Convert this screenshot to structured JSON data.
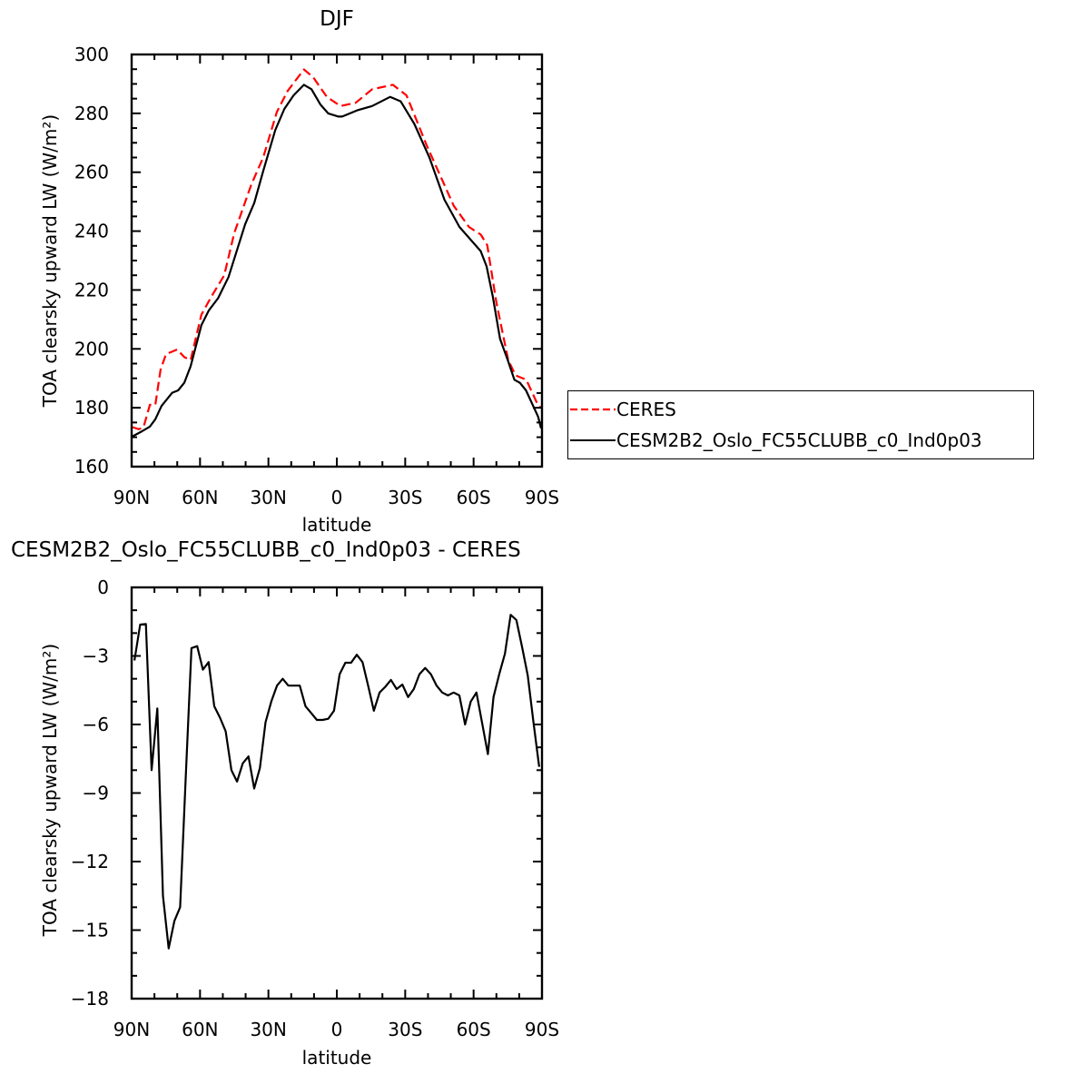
{
  "colors": {
    "ceres": "#ff0000",
    "model": "#000000"
  },
  "chart_data": [
    {
      "type": "line",
      "title": "DJF",
      "xlabel": "latitude",
      "ylabel": "TOA clearsky upward LW (W/m²)",
      "xlim": [
        90,
        -90
      ],
      "ylim": [
        160,
        300
      ],
      "x_ticks": [
        90,
        60,
        30,
        0,
        -30,
        -60,
        -90
      ],
      "x_tick_labels": [
        "90N",
        "60N",
        "30N",
        "0",
        "30S",
        "60S",
        "90S"
      ],
      "y_ticks": [
        160,
        180,
        200,
        220,
        240,
        260,
        280,
        300
      ],
      "y_tick_labels": [
        "160",
        "180",
        "200",
        "220",
        "240",
        "260",
        "280",
        "300"
      ],
      "legend_position": "right",
      "series": [
        {
          "name": "CERES",
          "style": "dashed",
          "color": "#ff0000",
          "lat": [
            89.6,
            86.8,
            84.8,
            82,
            79.6,
            77.3,
            74.9,
            70,
            66.9,
            64.1,
            59.4,
            55,
            49.4,
            45,
            37.5,
            32.3,
            26.3,
            21.5,
            14.4,
            10.4,
            4.4,
            -1.6,
            -8.3,
            -15.5,
            -24.6,
            -30.6,
            -39.4,
            -51.3,
            -58,
            -63.2,
            -66,
            -70,
            -75.2,
            -78.4,
            -83.1,
            -88.3,
            -89.6
          ],
          "values": [
            173.4,
            172.7,
            173.4,
            181,
            181,
            193,
            198.2,
            199.8,
            197.2,
            196.2,
            211.6,
            217.8,
            225,
            239.3,
            255.8,
            265,
            280.5,
            287.7,
            294.9,
            292.3,
            285.6,
            282.5,
            283.6,
            288.2,
            289.7,
            286.1,
            269.2,
            248.6,
            241.4,
            238.8,
            235.2,
            215.7,
            196.2,
            191,
            189.5,
            180.8,
            180
          ]
        },
        {
          "name": "CESM2B2_Oslo_FC55CLUBB_c0_Ind0p03",
          "style": "solid",
          "color": "#000000",
          "lat": [
            89.6,
            85.5,
            82,
            79.6,
            76.9,
            72.2,
            69.6,
            66.9,
            64.1,
            59.4,
            56.1,
            52.1,
            47.5,
            40.2,
            36.2,
            32.3,
            27,
            23,
            19,
            14.4,
            11.1,
            7.2,
            3.8,
            -0.7,
            -2.3,
            -8.9,
            -15.5,
            -23.4,
            -28,
            -34,
            -40.6,
            -47.2,
            -53.8,
            -63.1,
            -65.7,
            -68.4,
            -71.6,
            -75,
            -77.9,
            -80.3,
            -83,
            -88.3,
            -89.6
          ],
          "values": [
            170.3,
            172,
            173.6,
            176.1,
            180.6,
            185.1,
            185.9,
            188.5,
            194.1,
            208,
            213.1,
            217.2,
            224.4,
            242.4,
            249.6,
            260.4,
            274.3,
            281.5,
            286.1,
            289.7,
            288.2,
            283,
            280,
            278.9,
            278.9,
            281,
            282.5,
            285.6,
            284.1,
            276.4,
            265,
            250.7,
            241.4,
            233.2,
            228,
            217.8,
            203.4,
            196.2,
            189.5,
            188.5,
            185.9,
            177,
            173
          ]
        }
      ]
    },
    {
      "type": "line",
      "title": "CESM2B2_Oslo_FC55CLUBB_c0_Ind0p03 - CERES",
      "xlabel": "latitude",
      "ylabel": "TOA clearsky upward LW (W/m²)",
      "xlim": [
        90,
        -90
      ],
      "ylim": [
        -18,
        0
      ],
      "x_ticks": [
        90,
        60,
        30,
        0,
        -30,
        -60,
        -90
      ],
      "x_tick_labels": [
        "90N",
        "60N",
        "30N",
        "0",
        "30S",
        "60S",
        "90S"
      ],
      "y_ticks": [
        -18,
        -15,
        -12,
        -9,
        -6,
        -3,
        0
      ],
      "y_tick_labels": [
        "−18",
        "−15",
        "−12",
        "−9",
        "−6",
        "−3",
        "0"
      ],
      "series": [
        {
          "name": "difference",
          "style": "solid",
          "color": "#000000",
          "lat_start": 88.75,
          "lat_step": -2.5,
          "values": [
            -3.2,
            -1.63,
            -1.6,
            -8.0,
            -5.3,
            -13.5,
            -15.8,
            -14.6,
            -14.0,
            -8.3,
            -2.66,
            -2.57,
            -3.6,
            -3.27,
            -5.2,
            -5.7,
            -6.3,
            -8.0,
            -8.5,
            -7.7,
            -7.4,
            -8.8,
            -7.9,
            -5.9,
            -5.0,
            -4.3,
            -4.0,
            -4.3,
            -4.3,
            -4.3,
            -5.2,
            -5.5,
            -5.8,
            -5.8,
            -5.75,
            -5.4,
            -3.8,
            -3.3,
            -3.3,
            -2.95,
            -3.27,
            -4.3,
            -5.4,
            -4.6,
            -4.35,
            -4.05,
            -4.45,
            -4.25,
            -4.8,
            -4.45,
            -3.8,
            -3.53,
            -3.8,
            -4.3,
            -4.6,
            -4.73,
            -4.6,
            -4.73,
            -6.0,
            -5.0,
            -4.6,
            -5.95,
            -7.3,
            -4.8,
            -3.8,
            -2.9,
            -1.2,
            -1.43,
            -2.6,
            -3.85,
            -5.9,
            -7.85
          ]
        }
      ]
    }
  ]
}
